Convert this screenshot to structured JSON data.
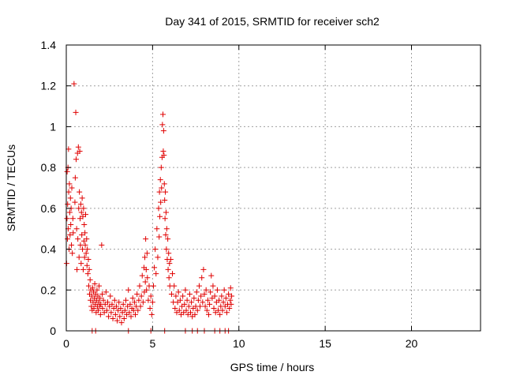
{
  "chart_data": {
    "type": "scatter",
    "title": "Day 341 of 2015, SRMTID for receiver sch2",
    "xlabel": "GPS time / hours",
    "ylabel": "SRMTID / TECUs",
    "xlim": [
      0,
      24
    ],
    "ylim": [
      0,
      1.4
    ],
    "xticks": [
      0,
      5,
      10,
      15,
      20
    ],
    "yticks": [
      0,
      0.2,
      0.4,
      0.6,
      0.8,
      1,
      1.2,
      1.4
    ],
    "xtick_labels": [
      "0",
      "5",
      "10",
      "15",
      "20"
    ],
    "ytick_labels": [
      "0",
      "0.2",
      "0.4",
      "0.6",
      "0.8",
      "1",
      "1.2",
      "1.4"
    ],
    "grid": true,
    "marker": "+",
    "color": "#e00000",
    "series": [
      {
        "name": "sch2",
        "points": [
          [
            0.02,
            0.33
          ],
          [
            0.04,
            0.55
          ],
          [
            0.05,
            0.78
          ],
          [
            0.07,
            0.45
          ],
          [
            0.08,
            0.62
          ],
          [
            0.1,
            0.8
          ],
          [
            0.11,
            0.5
          ],
          [
            0.13,
            0.89
          ],
          [
            0.14,
            0.68
          ],
          [
            0.16,
            0.4
          ],
          [
            0.18,
            0.72
          ],
          [
            0.2,
            0.58
          ],
          [
            0.22,
            0.47
          ],
          [
            0.24,
            0.65
          ],
          [
            0.26,
            0.52
          ],
          [
            0.28,
            0.6
          ],
          [
            0.3,
            0.42
          ],
          [
            0.32,
            0.7
          ],
          [
            0.35,
            0.38
          ],
          [
            0.38,
            0.55
          ],
          [
            0.4,
            0.48
          ],
          [
            0.45,
            1.21
          ],
          [
            0.5,
            0.63
          ],
          [
            0.52,
            0.75
          ],
          [
            0.55,
            1.07
          ],
          [
            0.57,
            0.84
          ],
          [
            0.6,
            0.5
          ],
          [
            0.62,
            0.3
          ],
          [
            0.65,
            0.87
          ],
          [
            0.67,
            0.45
          ],
          [
            0.7,
            0.9
          ],
          [
            0.72,
            0.6
          ],
          [
            0.74,
            0.36
          ],
          [
            0.76,
            0.68
          ],
          [
            0.78,
            0.88
          ],
          [
            0.8,
            0.55
          ],
          [
            0.82,
            0.42
          ],
          [
            0.84,
            0.62
          ],
          [
            0.86,
            0.33
          ],
          [
            0.88,
            0.58
          ],
          [
            0.9,
            0.47
          ],
          [
            0.92,
            0.65
          ],
          [
            0.94,
            0.4
          ],
          [
            0.96,
            0.56
          ],
          [
            0.98,
            0.3
          ],
          [
            1.0,
            0.6
          ],
          [
            1.02,
            0.44
          ],
          [
            1.04,
            0.52
          ],
          [
            1.06,
            0.36
          ],
          [
            1.08,
            0.48
          ],
          [
            1.1,
            0.42
          ],
          [
            1.12,
            0.57
          ],
          [
            1.15,
            0.38
          ],
          [
            1.18,
            0.45
          ],
          [
            1.2,
            0.32
          ],
          [
            1.22,
            0.4
          ],
          [
            1.25,
            0.28
          ],
          [
            1.28,
            0.35
          ],
          [
            1.3,
            0.22
          ],
          [
            1.33,
            0.3
          ],
          [
            1.35,
            0.18
          ],
          [
            1.38,
            0.25
          ],
          [
            1.4,
            0.15
          ],
          [
            1.42,
            0.2
          ],
          [
            1.45,
            0.12
          ],
          [
            1.48,
            0.17
          ],
          [
            1.5,
            0.1
          ],
          [
            1.53,
            0.21
          ],
          [
            1.55,
            0.14
          ],
          [
            1.58,
            0.19
          ],
          [
            1.6,
            0.11
          ],
          [
            1.63,
            0.16
          ],
          [
            1.65,
            0.23
          ],
          [
            1.68,
            0.13
          ],
          [
            1.7,
            0.18
          ],
          [
            1.73,
            0.09
          ],
          [
            1.75,
            0.15
          ],
          [
            1.78,
            0.2
          ],
          [
            1.8,
            0.12
          ],
          [
            1.83,
            0.17
          ],
          [
            1.85,
            0.1
          ],
          [
            1.88,
            0.14
          ],
          [
            1.9,
            0.22
          ],
          [
            1.93,
            0.12
          ],
          [
            1.95,
            0.16
          ],
          [
            1.98,
            0.08
          ],
          [
            2.0,
            0.13
          ],
          [
            2.05,
            0.42
          ],
          [
            2.08,
            0.18
          ],
          [
            2.1,
            0.11
          ],
          [
            2.15,
            0.15
          ],
          [
            2.2,
            0.09
          ],
          [
            2.25,
            0.13
          ],
          [
            2.3,
            0.19
          ],
          [
            2.35,
            0.1
          ],
          [
            2.4,
            0.14
          ],
          [
            2.45,
            0.07
          ],
          [
            2.5,
            0.12
          ],
          [
            2.55,
            0.17
          ],
          [
            2.6,
            0.09
          ],
          [
            2.65,
            0.13
          ],
          [
            2.7,
            0.06
          ],
          [
            2.75,
            0.11
          ],
          [
            2.8,
            0.15
          ],
          [
            2.85,
            0.08
          ],
          [
            2.9,
            0.12
          ],
          [
            2.95,
            0.05
          ],
          [
            3.0,
            0.1
          ],
          [
            3.05,
            0.14
          ],
          [
            3.1,
            0.07
          ],
          [
            3.15,
            0.11
          ],
          [
            3.2,
            0.04
          ],
          [
            3.25,
            0.09
          ],
          [
            3.3,
            0.13
          ],
          [
            3.35,
            0.06
          ],
          [
            3.4,
            0.1
          ],
          [
            3.45,
            0.15
          ],
          [
            3.5,
            0.08
          ],
          [
            3.55,
            0.12
          ],
          [
            3.6,
            0.2
          ],
          [
            3.65,
            0.09
          ],
          [
            3.7,
            0.13
          ],
          [
            3.75,
            0.07
          ],
          [
            3.8,
            0.11
          ],
          [
            3.85,
            0.16
          ],
          [
            3.9,
            0.1
          ],
          [
            3.95,
            0.14
          ],
          [
            4.0,
            0.08
          ],
          [
            4.05,
            0.12
          ],
          [
            4.1,
            0.18
          ],
          [
            4.15,
            0.1
          ],
          [
            4.2,
            0.15
          ],
          [
            4.25,
            0.22
          ],
          [
            4.3,
            0.12
          ],
          [
            4.35,
            0.17
          ],
          [
            4.4,
            0.27
          ],
          [
            4.45,
            0.14
          ],
          [
            4.5,
            0.31
          ],
          [
            4.52,
            0.19
          ],
          [
            4.55,
            0.36
          ],
          [
            4.58,
            0.24
          ],
          [
            4.6,
            0.45
          ],
          [
            4.63,
            0.3
          ],
          [
            4.65,
            0.2
          ],
          [
            4.68,
            0.38
          ],
          [
            4.7,
            0.26
          ],
          [
            4.75,
            0.15
          ],
          [
            4.8,
            0.22
          ],
          [
            4.85,
            0.11
          ],
          [
            4.9,
            0.17
          ],
          [
            4.95,
            0.08
          ],
          [
            5.0,
            0.14
          ],
          [
            5.05,
            0.22
          ],
          [
            5.1,
            0.31
          ],
          [
            5.15,
            0.4
          ],
          [
            5.2,
            0.28
          ],
          [
            5.25,
            0.5
          ],
          [
            5.3,
            0.36
          ],
          [
            5.35,
            0.6
          ],
          [
            5.38,
            0.46
          ],
          [
            5.4,
            0.68
          ],
          [
            5.42,
            0.56
          ],
          [
            5.45,
            0.74
          ],
          [
            5.47,
            0.63
          ],
          [
            5.5,
            0.8
          ],
          [
            5.52,
            0.7
          ],
          [
            5.55,
            0.85
          ],
          [
            5.57,
            1.01
          ],
          [
            5.6,
            1.06
          ],
          [
            5.62,
            0.88
          ],
          [
            5.64,
            0.98
          ],
          [
            5.66,
            0.86
          ],
          [
            5.68,
            0.72
          ],
          [
            5.7,
            0.64
          ],
          [
            5.72,
            0.55
          ],
          [
            5.74,
            0.68
          ],
          [
            5.76,
            0.47
          ],
          [
            5.78,
            0.58
          ],
          [
            5.8,
            0.4
          ],
          [
            5.82,
            0.5
          ],
          [
            5.85,
            0.35
          ],
          [
            5.88,
            0.45
          ],
          [
            5.9,
            0.3
          ],
          [
            5.93,
            0.38
          ],
          [
            5.95,
            0.26
          ],
          [
            5.98,
            0.33
          ],
          [
            6.0,
            0.22
          ],
          [
            6.05,
            0.35
          ],
          [
            6.1,
            0.18
          ],
          [
            6.15,
            0.28
          ],
          [
            6.2,
            0.14
          ],
          [
            6.25,
            0.22
          ],
          [
            6.3,
            0.11
          ],
          [
            6.35,
            0.17
          ],
          [
            6.4,
            0.09
          ],
          [
            6.45,
            0.14
          ],
          [
            6.5,
            0.19
          ],
          [
            6.55,
            0.1
          ],
          [
            6.6,
            0.15
          ],
          [
            6.65,
            0.08
          ],
          [
            6.7,
            0.12
          ],
          [
            6.75,
            0.17
          ],
          [
            6.8,
            0.09
          ],
          [
            6.85,
            0.13
          ],
          [
            6.9,
            0.2
          ],
          [
            6.95,
            0.1
          ],
          [
            7.0,
            0.15
          ],
          [
            7.05,
            0.08
          ],
          [
            7.1,
            0.12
          ],
          [
            7.15,
            0.18
          ],
          [
            7.2,
            0.09
          ],
          [
            7.25,
            0.14
          ],
          [
            7.3,
            0.07
          ],
          [
            7.35,
            0.11
          ],
          [
            7.4,
            0.16
          ],
          [
            7.45,
            0.08
          ],
          [
            7.5,
            0.12
          ],
          [
            7.55,
            0.19
          ],
          [
            7.6,
            0.1
          ],
          [
            7.65,
            0.15
          ],
          [
            7.7,
            0.22
          ],
          [
            7.75,
            0.12
          ],
          [
            7.8,
            0.17
          ],
          [
            7.85,
            0.26
          ],
          [
            7.9,
            0.14
          ],
          [
            7.95,
            0.3
          ],
          [
            8.0,
            0.18
          ],
          [
            8.05,
            0.12
          ],
          [
            8.1,
            0.2
          ],
          [
            8.15,
            0.1
          ],
          [
            8.2,
            0.15
          ],
          [
            8.25,
            0.08
          ],
          [
            8.3,
            0.13
          ],
          [
            8.35,
            0.19
          ],
          [
            8.4,
            0.27
          ],
          [
            8.45,
            0.16
          ],
          [
            8.5,
            0.22
          ],
          [
            8.55,
            0.11
          ],
          [
            8.6,
            0.17
          ],
          [
            8.65,
            0.09
          ],
          [
            8.7,
            0.14
          ],
          [
            8.75,
            0.2
          ],
          [
            8.8,
            0.1
          ],
          [
            8.85,
            0.15
          ],
          [
            8.9,
            0.08
          ],
          [
            8.95,
            0.12
          ],
          [
            9.0,
            0.17
          ],
          [
            9.05,
            0.1
          ],
          [
            9.1,
            0.14
          ],
          [
            9.15,
            0.2
          ],
          [
            9.2,
            0.12
          ],
          [
            9.25,
            0.16
          ],
          [
            9.3,
            0.09
          ],
          [
            9.35,
            0.13
          ],
          [
            9.4,
            0.18
          ],
          [
            9.45,
            0.11
          ],
          [
            9.5,
            0.15
          ],
          [
            9.52,
            0.21
          ],
          [
            9.55,
            0.13
          ],
          [
            9.58,
            0.17
          ],
          [
            1.5,
            0.0
          ],
          [
            1.7,
            0.0
          ],
          [
            3.6,
            0.0
          ],
          [
            4.9,
            0.0
          ],
          [
            5.7,
            0.0
          ],
          [
            6.9,
            0.0
          ],
          [
            7.3,
            0.0
          ],
          [
            7.6,
            0.0
          ],
          [
            8.0,
            0.0
          ],
          [
            8.6,
            0.0
          ],
          [
            8.9,
            0.0
          ],
          [
            9.2,
            0.0
          ],
          [
            9.4,
            0.0
          ]
        ]
      }
    ]
  }
}
